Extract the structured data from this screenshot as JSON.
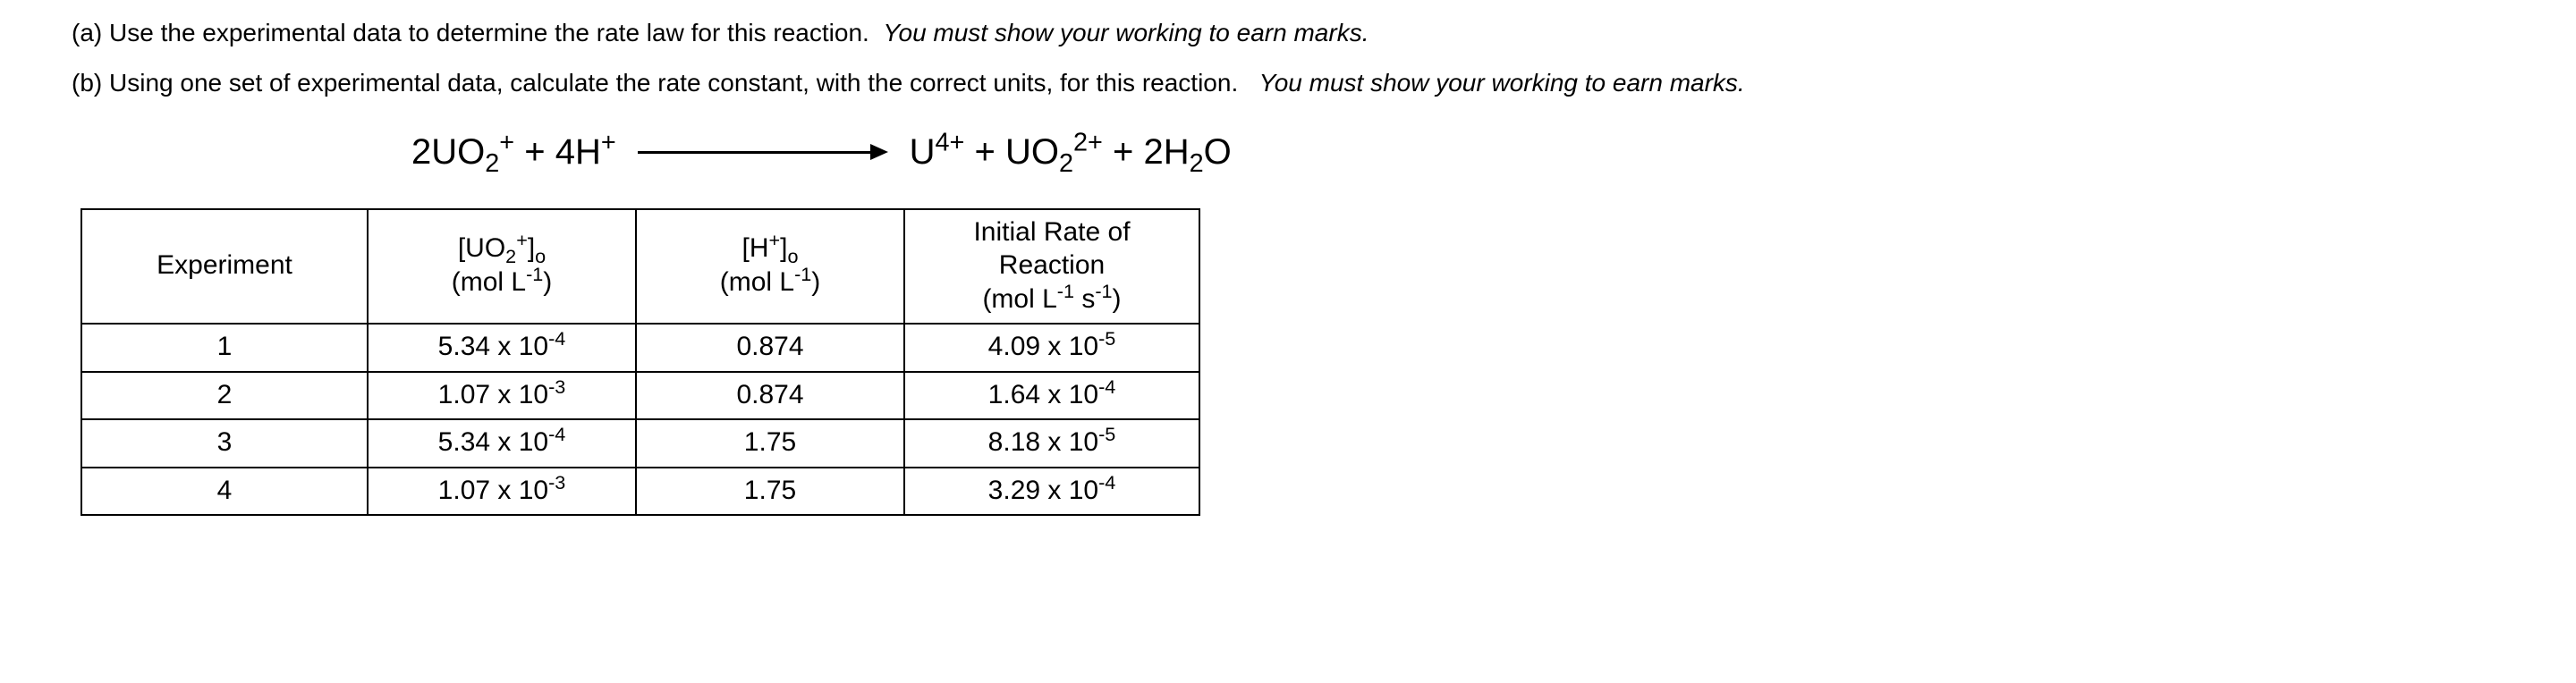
{
  "questions": {
    "a": {
      "label": "(a)",
      "text": "Use the experimental data to determine the rate law for this reaction.",
      "note": "You must show your working to earn marks."
    },
    "b": {
      "label": "(b)",
      "text": "Using one set of experimental data, calculate the rate constant, with the correct units, for this reaction.",
      "note": "You must show your working to earn marks."
    }
  },
  "equation": {
    "left": {
      "coef1": "2",
      "species1_base": "UO",
      "species1_sub": "2",
      "species1_sup": "+",
      "plus": " + ",
      "coef2": "4",
      "species2_base": "H",
      "species2_sup": "+"
    },
    "right": {
      "species1_base": "U",
      "species1_sup": "4+",
      "plus1": " + ",
      "species2_base": "UO",
      "species2_sub": "2",
      "species2_sup": "2+",
      "plus2": " + ",
      "coef3": "2",
      "species3_base": "H",
      "species3_sub": "2",
      "species3_tail": "O"
    }
  },
  "table": {
    "headers": {
      "c1": "Experiment",
      "c2_line1_open": "[",
      "c2_line1_base": "UO",
      "c2_line1_sub": "2",
      "c2_line1_sup": "+",
      "c2_line1_close": "]",
      "c2_line1_subo": "o",
      "c2_line2_open": "(mol L",
      "c2_line2_sup": "-1",
      "c2_line2_close": ")",
      "c3_line1_open": "[",
      "c3_line1_base": "H",
      "c3_line1_sup": "+",
      "c3_line1_close": "]",
      "c3_line1_subo": "o",
      "c3_line2_open": "(mol L",
      "c3_line2_sup": "-1",
      "c3_line2_close": ")",
      "c4_line1": "Initial Rate of",
      "c4_line2": "Reaction",
      "c4_line3_open": "(mol L",
      "c4_line3_sup1": "-1",
      "c4_line3_mid": " s",
      "c4_line3_sup2": "-1",
      "c4_line3_close": ")"
    },
    "rows": [
      {
        "exp": "1",
        "uo2_mant": "5.34 x 10",
        "uo2_exp": "-4",
        "h": "0.874",
        "rate_mant": "4.09 x 10",
        "rate_exp": "-5"
      },
      {
        "exp": "2",
        "uo2_mant": "1.07 x 10",
        "uo2_exp": "-3",
        "h": "0.874",
        "rate_mant": "1.64 x 10",
        "rate_exp": "-4"
      },
      {
        "exp": "3",
        "uo2_mant": "5.34 x 10",
        "uo2_exp": "-4",
        "h": "1.75",
        "rate_mant": "8.18 x 10",
        "rate_exp": "-5"
      },
      {
        "exp": "4",
        "uo2_mant": "1.07 x 10",
        "uo2_exp": "-3",
        "h": "1.75",
        "rate_mant": "3.29 x 10",
        "rate_exp": "-4"
      }
    ]
  }
}
